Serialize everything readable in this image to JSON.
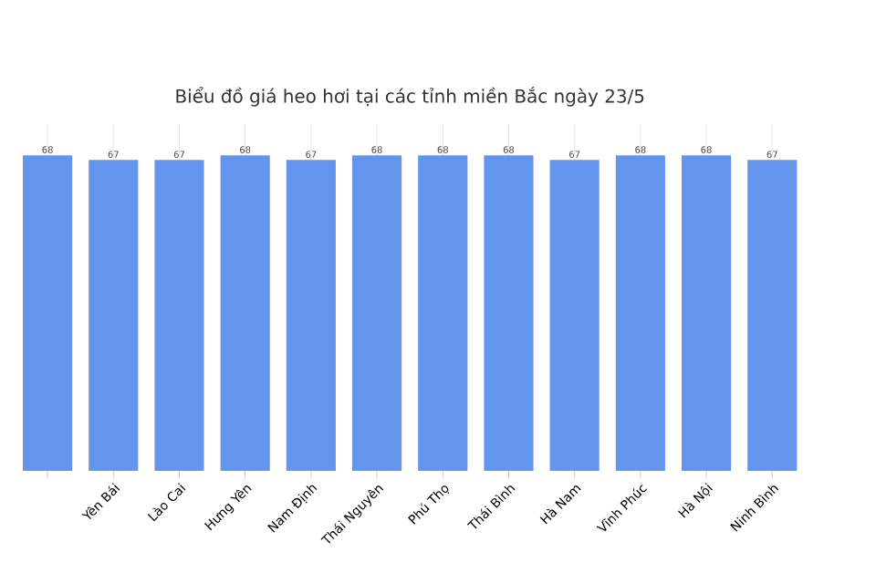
{
  "chart_data": {
    "type": "bar",
    "title": "Biểu đồ giá heo hơi tại các tỉnh miền Bắc ngày 23/5",
    "categories": [
      null,
      "Yên Bái",
      "Lào Cai",
      "Hưng Yên",
      "Nam Định",
      "Thái Nguyên",
      "Phú Thọ",
      "Thái Bình",
      "Hà Nam",
      "Vĩnh Phúc",
      "Hà Nội",
      "Ninh Bình"
    ],
    "values": [
      68,
      67,
      67,
      68,
      67,
      68,
      68,
      68,
      67,
      68,
      68,
      67
    ],
    "color": "#6495ed",
    "data_labels": true,
    "grid": "x"
  }
}
